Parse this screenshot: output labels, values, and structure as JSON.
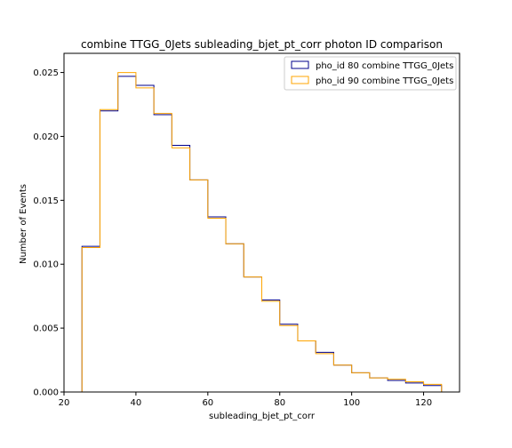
{
  "chart_data": {
    "type": "step-histogram",
    "title": "combine TTGG_0Jets subleading_bjet_pt_corr photon ID comparison",
    "xlabel": "subleading_bjet_pt_corr",
    "ylabel": "Number of Events",
    "xlim": [
      20,
      130
    ],
    "ylim": [
      0,
      0.0265
    ],
    "xticks": [
      20,
      40,
      60,
      80,
      100,
      120
    ],
    "yticks": [
      "0.000",
      "0.005",
      "0.010",
      "0.015",
      "0.020",
      "0.025"
    ],
    "grid": false,
    "legend_position": "top-right",
    "bin_edges": [
      25,
      30,
      35,
      40,
      45,
      50,
      55,
      60,
      65,
      70,
      75,
      80,
      85,
      90,
      95,
      100,
      105,
      110,
      115,
      120,
      125
    ],
    "series": [
      {
        "name": "pho_id 80 combine TTGG_0Jets",
        "color": "#00008b",
        "values": [
          0.0114,
          0.022,
          0.0247,
          0.024,
          0.0217,
          0.0193,
          0.0166,
          0.0137,
          0.0116,
          0.009,
          0.0072,
          0.0053,
          0.004,
          0.0031,
          0.0021,
          0.0015,
          0.0011,
          0.0009,
          0.0007,
          0.0005
        ]
      },
      {
        "name": "pho_id 90 combine TTGG_0Jets",
        "color": "#ffa500",
        "values": [
          0.0113,
          0.0221,
          0.025,
          0.0238,
          0.0218,
          0.0191,
          0.0166,
          0.0136,
          0.0116,
          0.009,
          0.0071,
          0.0052,
          0.004,
          0.003,
          0.0021,
          0.0015,
          0.0011,
          0.001,
          0.0008,
          0.0006
        ]
      }
    ]
  }
}
